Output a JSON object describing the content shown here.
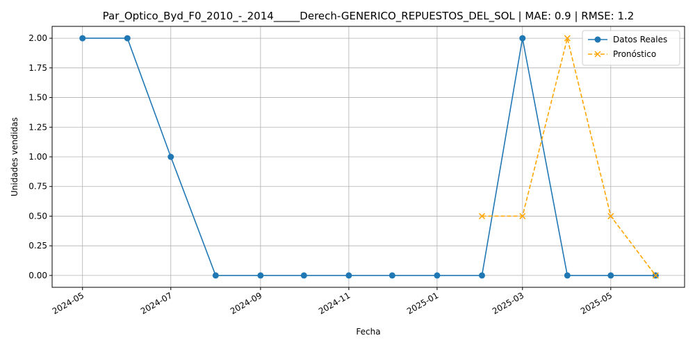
{
  "chart_data": {
    "type": "line",
    "title": "Par_Optico_Byd_F0_2010_-_2014_____Derech-GENERICO_REPUESTOS_DEL_SOL | MAE: 0.9 | RMSE: 1.2",
    "xlabel": "Fecha",
    "ylabel": "Unidades vendidas",
    "x_ticks": [
      "2024-05",
      "2024-07",
      "2024-09",
      "2024-11",
      "2025-01",
      "2025-03",
      "2025-05"
    ],
    "y_ticks": [
      "0.00",
      "0.25",
      "0.50",
      "0.75",
      "1.00",
      "1.25",
      "1.50",
      "1.75",
      "2.00"
    ],
    "xlim": [
      "2024-04-10",
      "2025-06-21"
    ],
    "ylim": [
      -0.1,
      2.1
    ],
    "grid": true,
    "legend_position": "top-right",
    "series": [
      {
        "name": "Datos Reales",
        "color": "#1f77b4",
        "marker": "circle",
        "line_style": "solid",
        "x": [
          "2024-05-01",
          "2024-06-01",
          "2024-07-01",
          "2024-08-01",
          "2024-09-01",
          "2024-10-01",
          "2024-11-01",
          "2024-12-01",
          "2025-01-01",
          "2025-02-01",
          "2025-03-01",
          "2025-04-01",
          "2025-05-01",
          "2025-06-01"
        ],
        "values": [
          2,
          2,
          1,
          0,
          0,
          0,
          0,
          0,
          0,
          0,
          2,
          0,
          0,
          0
        ]
      },
      {
        "name": "Pronóstico",
        "color": "#ffa500",
        "marker": "x",
        "line_style": "dashed",
        "x": [
          "2025-02-01",
          "2025-03-01",
          "2025-04-01",
          "2025-05-01",
          "2025-06-01"
        ],
        "values": [
          0.5,
          0.5,
          2,
          0.5,
          0
        ]
      }
    ]
  }
}
